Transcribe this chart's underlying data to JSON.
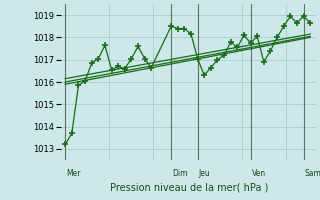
{
  "xlabel": "Pression niveau de la mer( hPa )",
  "bg_color": "#cce8e8",
  "grid_color": "#aacccc",
  "line_color": "#1a6b1a",
  "ylim": [
    1012.5,
    1019.5
  ],
  "yticks": [
    1013,
    1014,
    1015,
    1016,
    1017,
    1018,
    1019
  ],
  "day_labels": [
    "Mer",
    "Dim",
    "Jeu",
    "Ven",
    "Sam"
  ],
  "day_positions": [
    0,
    48,
    60,
    84,
    108
  ],
  "xlim": [
    -2,
    114
  ],
  "main_x": [
    0,
    3,
    6,
    9,
    12,
    15,
    18,
    21,
    24,
    27,
    30,
    33,
    36,
    39,
    48,
    51,
    54,
    57,
    60,
    63,
    66,
    69,
    72,
    75,
    78,
    81,
    84,
    87,
    90,
    93,
    96,
    99,
    102,
    105,
    108,
    111
  ],
  "main_y": [
    1013.2,
    1013.7,
    1015.85,
    1016.05,
    1016.85,
    1017.05,
    1017.65,
    1016.55,
    1016.7,
    1016.6,
    1017.05,
    1017.6,
    1017.05,
    1016.65,
    1018.5,
    1018.4,
    1018.4,
    1018.15,
    1017.05,
    1016.3,
    1016.65,
    1017.0,
    1017.2,
    1017.8,
    1017.55,
    1018.1,
    1017.75,
    1018.05,
    1016.9,
    1017.4,
    1018.0,
    1018.5,
    1018.95,
    1018.65,
    1018.95,
    1018.65
  ],
  "trend1_x": [
    0,
    111
  ],
  "trend1_y": [
    1015.9,
    1018.0
  ],
  "trend2_x": [
    0,
    111
  ],
  "trend2_y": [
    1016.0,
    1018.05
  ],
  "trend3_x": [
    0,
    111
  ],
  "trend3_y": [
    1016.15,
    1018.15
  ]
}
